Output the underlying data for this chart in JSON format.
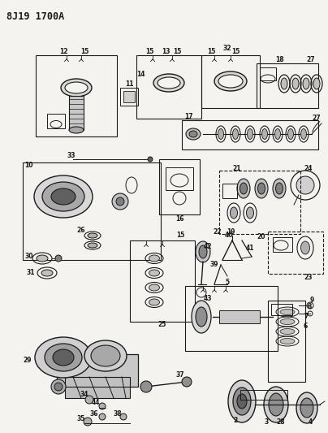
{
  "title": "8J19 1700A",
  "bg_color": "#f5f3f0",
  "line_color": "#1a1a1a",
  "fig_width": 4.04,
  "fig_height": 5.33,
  "dpi": 100
}
